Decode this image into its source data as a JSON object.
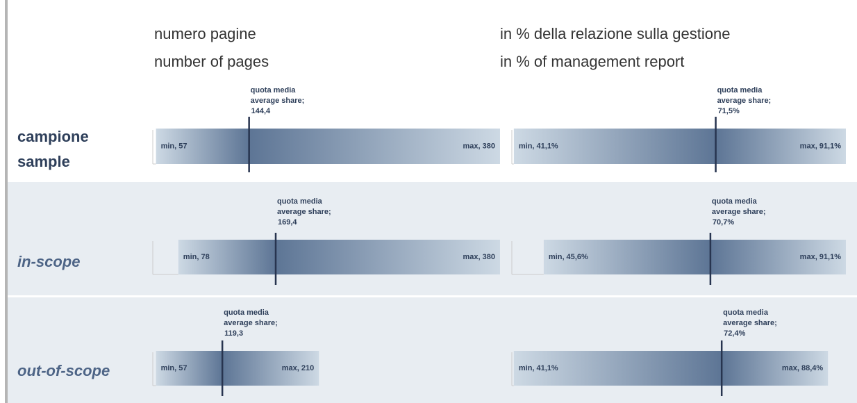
{
  "row_labels": [
    [
      "campione",
      "sample"
    ],
    [
      "in-scope"
    ],
    [
      "out-of-scope"
    ]
  ],
  "chart_data": [
    {
      "type": "range",
      "title": [
        "numero pagine",
        "number of pages"
      ],
      "xlim": [
        54,
        380
      ],
      "min": {
        "values": [
          57,
          78,
          57
        ],
        "value_labels": [
          "min, 57",
          "min, 78",
          "min, 57"
        ]
      },
      "max": {
        "values": [
          380,
          380,
          210
        ],
        "value_labels": [
          "max, 380",
          "max, 380",
          "max, 210"
        ]
      },
      "average": {
        "label_lines": [
          "quota media",
          "average share;"
        ],
        "values": [
          144.4,
          169.4,
          119.3
        ],
        "value_labels": [
          "144,4",
          "169,4",
          "119,3"
        ]
      },
      "dark_color": "#5d7595",
      "light_color": "#cdd9e4"
    },
    {
      "type": "range",
      "title": [
        "in % della relazione sulla gestione",
        "in % of management report"
      ],
      "xlim": [
        40.8,
        91.1
      ],
      "min": {
        "values": [
          41.1,
          45.6,
          41.1
        ],
        "value_labels": [
          "min, 41,1%",
          "min, 45,6%",
          "min, 41,1%"
        ]
      },
      "max": {
        "values": [
          91.1,
          91.1,
          88.4
        ],
        "value_labels": [
          "max, 91,1%",
          "max, 91,1%",
          "max, 88,4%"
        ]
      },
      "average": {
        "label_lines": [
          "quota media",
          "average share;"
        ],
        "values": [
          71.5,
          70.7,
          72.4
        ],
        "value_labels": [
          "71,5%",
          "70,7%",
          "72,4%"
        ]
      },
      "dark_color": "#5d7595",
      "light_color": "#cdd9e4"
    }
  ]
}
